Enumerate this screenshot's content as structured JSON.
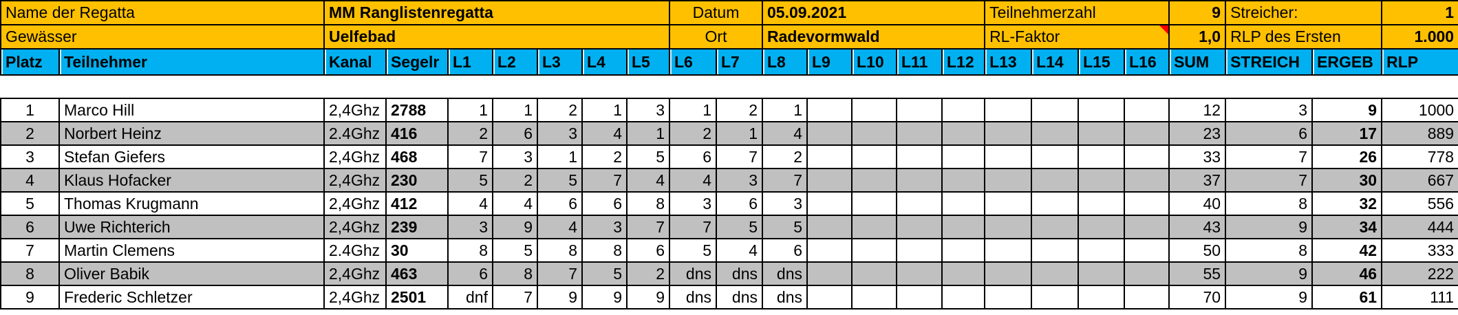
{
  "colors": {
    "gold": "#FFC000",
    "cyan": "#00B0F0",
    "alt": "#C0C0C0",
    "marker": "#FF0000"
  },
  "info": {
    "row1": {
      "name_label": "Name der Regatta",
      "name_value": "MM Ranglistenregatta",
      "date_label": "Datum",
      "date_value": "05.09.2021",
      "participants_label": "Teilnehmerzahl",
      "participants_value": "9",
      "discards_label": "Streicher:",
      "discards_value": "1"
    },
    "row2": {
      "water_label": "Gewässer",
      "water_value": "Uelfebad",
      "place_label": "Ort",
      "place_value": "Radevormwald",
      "factor_label": "RL-Faktor",
      "factor_value": "1,0",
      "rlp_first_label": "RLP des Ersten",
      "rlp_first_value": "1.000"
    }
  },
  "columns": [
    "Platz",
    "Teilnehmer",
    "Kanal",
    "Segelr",
    "L1",
    "L2",
    "L3",
    "L4",
    "L5",
    "L6",
    "L7",
    "L8",
    "L9",
    "L10",
    "L11",
    "L12",
    "L13",
    "L14",
    "L15",
    "L16",
    "SUM",
    "STREICH",
    "ERGEB",
    "RLP"
  ],
  "results": {
    "rows": [
      {
        "platz": "1",
        "teilnehmer": "Marco Hill",
        "kanal": "2,4Ghz",
        "segelnr": "2788",
        "races": [
          "1",
          "1",
          "2",
          "1",
          "3",
          "1",
          "2",
          "1",
          "",
          "",
          "",
          "",
          "",
          "",
          "",
          ""
        ],
        "sum": "12",
        "streich": "3",
        "ergeb": "9",
        "rlp": "1000"
      },
      {
        "platz": "2",
        "teilnehmer": "Norbert Heinz",
        "kanal": "2.4Ghz",
        "segelnr": "416",
        "races": [
          "2",
          "6",
          "3",
          "4",
          "1",
          "2",
          "1",
          "4",
          "",
          "",
          "",
          "",
          "",
          "",
          "",
          ""
        ],
        "sum": "23",
        "streich": "6",
        "ergeb": "17",
        "rlp": "889"
      },
      {
        "platz": "3",
        "teilnehmer": "Stefan Giefers",
        "kanal": "2,4Ghz",
        "segelnr": "468",
        "races": [
          "7",
          "3",
          "1",
          "2",
          "5",
          "6",
          "7",
          "2",
          "",
          "",
          "",
          "",
          "",
          "",
          "",
          ""
        ],
        "sum": "33",
        "streich": "7",
        "ergeb": "26",
        "rlp": "778"
      },
      {
        "platz": "4",
        "teilnehmer": "Klaus Hofacker",
        "kanal": "2,4Ghz",
        "segelnr": "230",
        "races": [
          "5",
          "2",
          "5",
          "7",
          "4",
          "4",
          "3",
          "7",
          "",
          "",
          "",
          "",
          "",
          "",
          "",
          ""
        ],
        "sum": "37",
        "streich": "7",
        "ergeb": "30",
        "rlp": "667"
      },
      {
        "platz": "5",
        "teilnehmer": "Thomas Krugmann",
        "kanal": "2,4Ghz",
        "segelnr": "412",
        "races": [
          "4",
          "4",
          "6",
          "6",
          "8",
          "3",
          "6",
          "3",
          "",
          "",
          "",
          "",
          "",
          "",
          "",
          ""
        ],
        "sum": "40",
        "streich": "8",
        "ergeb": "32",
        "rlp": "556"
      },
      {
        "platz": "6",
        "teilnehmer": "Uwe Richterich",
        "kanal": "2,4Ghz",
        "segelnr": "239",
        "races": [
          "3",
          "9",
          "4",
          "3",
          "7",
          "7",
          "5",
          "5",
          "",
          "",
          "",
          "",
          "",
          "",
          "",
          ""
        ],
        "sum": "43",
        "streich": "9",
        "ergeb": "34",
        "rlp": "444"
      },
      {
        "platz": "7",
        "teilnehmer": "Martin Clemens",
        "kanal": "2.4Ghz",
        "segelnr": "30",
        "races": [
          "8",
          "5",
          "8",
          "8",
          "6",
          "5",
          "4",
          "6",
          "",
          "",
          "",
          "",
          "",
          "",
          "",
          ""
        ],
        "sum": "50",
        "streich": "8",
        "ergeb": "42",
        "rlp": "333"
      },
      {
        "platz": "8",
        "teilnehmer": "Oliver Babik",
        "kanal": "2,4Ghz",
        "segelnr": "463",
        "races": [
          "6",
          "8",
          "7",
          "5",
          "2",
          "dns",
          "dns",
          "dns",
          "",
          "",
          "",
          "",
          "",
          "",
          "",
          ""
        ],
        "sum": "55",
        "streich": "9",
        "ergeb": "46",
        "rlp": "222"
      },
      {
        "platz": "9",
        "teilnehmer": "Frederic Schletzer",
        "kanal": "2,4Ghz",
        "segelnr": "2501",
        "races": [
          "dnf",
          "7",
          "9",
          "9",
          "9",
          "dns",
          "dns",
          "dns",
          "",
          "",
          "",
          "",
          "",
          "",
          "",
          ""
        ],
        "sum": "70",
        "streich": "9",
        "ergeb": "61",
        "rlp": "111"
      }
    ]
  }
}
